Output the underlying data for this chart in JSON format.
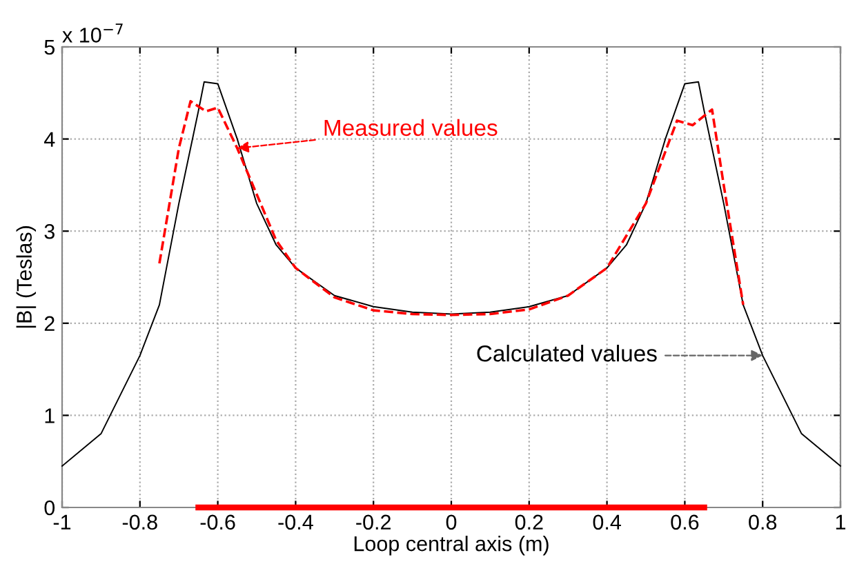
{
  "chart_data": {
    "type": "line",
    "xlabel": "Loop central axis (m)",
    "ylabel": "|B| (Teslas)",
    "xlim": [
      -1,
      1
    ],
    "ylim": [
      0,
      5
    ],
    "xticks": [
      -1,
      -0.8,
      -0.6,
      -0.4,
      -0.2,
      0,
      0.2,
      0.4,
      0.6,
      0.8,
      1
    ],
    "yticks": [
      0,
      1,
      2,
      3,
      4,
      5
    ],
    "grid": true,
    "legend": false,
    "series": [
      {
        "color": "#000000",
        "line_style": "solid",
        "x": [
          -1,
          -0.9,
          -0.8,
          -0.75,
          -0.7,
          -0.65,
          -0.635,
          -0.6,
          -0.55,
          -0.5,
          -0.45,
          -0.4,
          -0.3,
          -0.2,
          -0.1,
          0,
          0.1,
          0.2,
          0.3,
          0.4,
          0.45,
          0.5,
          0.55,
          0.6,
          0.635,
          0.65,
          0.7,
          0.75,
          0.8,
          0.9,
          1
        ],
        "values": [
          0.45,
          0.8,
          1.65,
          2.2,
          3.3,
          4.3,
          4.62,
          4.6,
          4.0,
          3.3,
          2.85,
          2.6,
          2.3,
          2.18,
          2.12,
          2.1,
          2.12,
          2.18,
          2.3,
          2.6,
          2.85,
          3.3,
          4.0,
          4.6,
          4.62,
          4.3,
          3.3,
          2.2,
          1.65,
          0.8,
          0.45
        ]
      },
      {
        "color": "#ff0000",
        "line_style": "dashed",
        "x": [
          -0.75,
          -0.7,
          -0.67,
          -0.63,
          -0.6,
          -0.55,
          -0.5,
          -0.45,
          -0.4,
          -0.3,
          -0.2,
          -0.1,
          0,
          0.1,
          0.2,
          0.3,
          0.4,
          0.5,
          0.58,
          0.62,
          0.67,
          0.7,
          0.75
        ],
        "values": [
          2.65,
          3.9,
          4.41,
          4.3,
          4.34,
          3.9,
          3.4,
          2.9,
          2.6,
          2.28,
          2.14,
          2.1,
          2.09,
          2.1,
          2.15,
          2.3,
          2.6,
          3.3,
          4.2,
          4.15,
          4.32,
          3.5,
          2.2
        ]
      },
      {
        "color": "#ff0000",
        "line_style": "solid",
        "x": [
          -0.65,
          0.65
        ],
        "values": [
          0,
          0
        ]
      }
    ],
    "annotations": [
      "x 10$^{−7}$",
      {
        "text": "Measured values",
        "x": -0.55,
        "y": 3.9
      },
      {
        "text": "Calculated values",
        "x": 0.8,
        "y": 1.65
      }
    ]
  }
}
